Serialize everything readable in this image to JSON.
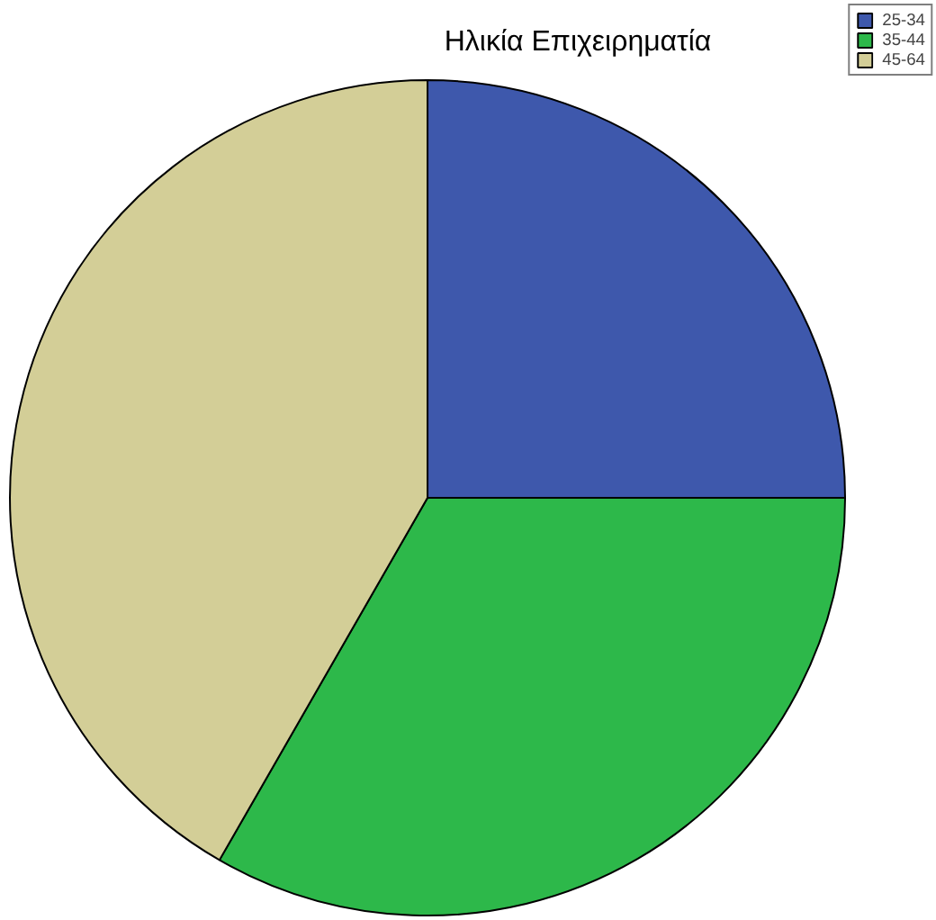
{
  "chart_data": {
    "type": "pie",
    "title": "Ηλικία Επιχειρηματία",
    "categories": [
      "25-34",
      "35-44",
      "45-64"
    ],
    "values": [
      25,
      33.3,
      41.7
    ],
    "colors": [
      "#3e58ac",
      "#2db84a",
      "#d3ce97"
    ],
    "legend": "top right"
  }
}
